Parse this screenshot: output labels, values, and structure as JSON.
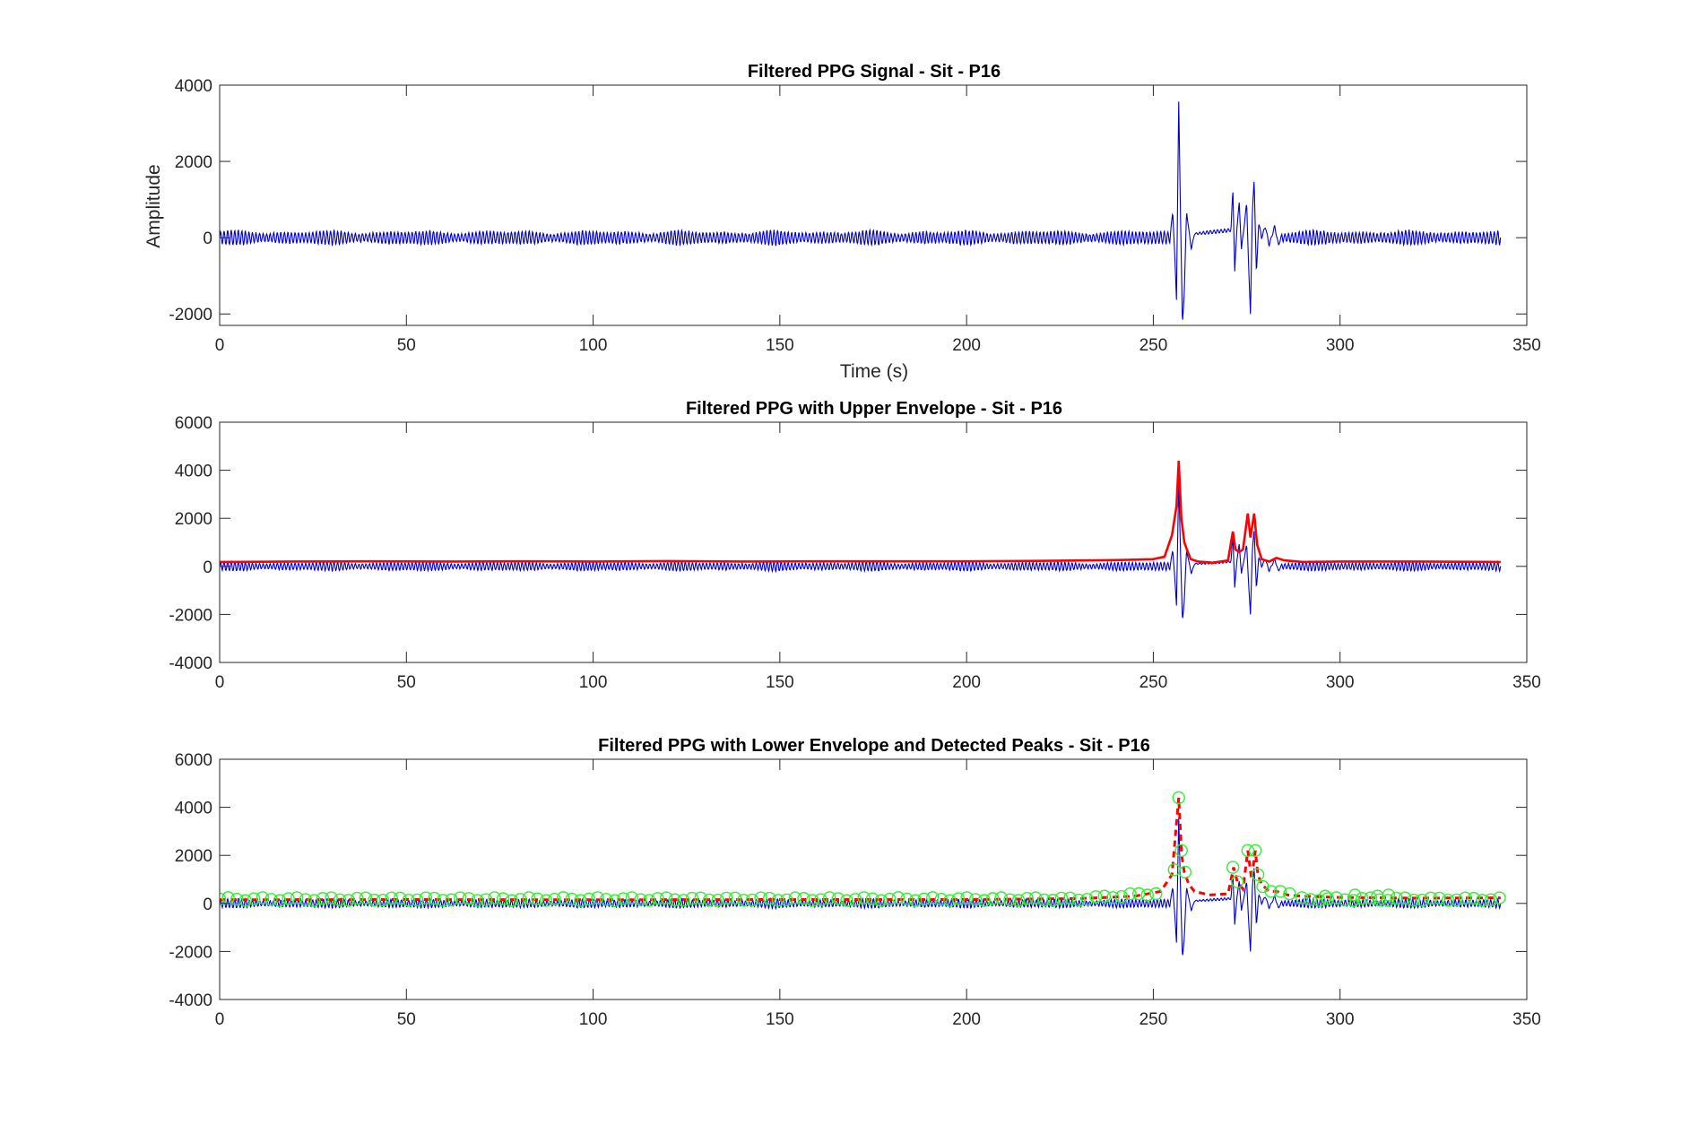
{
  "chart_data": [
    {
      "type": "line",
      "title": "Filtered PPG Signal - Sit - P16",
      "xlabel": "Time (s)",
      "ylabel": "Amplitude",
      "xlim": [
        0,
        350
      ],
      "ylim": [
        -2300,
        4000
      ],
      "xticks": [
        0,
        50,
        100,
        150,
        200,
        250,
        300,
        350
      ],
      "yticks": [
        -2000,
        0,
        2000,
        4000
      ],
      "grid": false,
      "colors": {
        "signal": "#0000cc"
      },
      "signal": {
        "duration": 343,
        "baseline_amplitude": 170,
        "beat_period": 0.95,
        "artifact_points": [
          [
            254.5,
            0
          ],
          [
            255.2,
            700
          ],
          [
            255.7,
            -400
          ],
          [
            256.2,
            -1600
          ],
          [
            256.8,
            3550
          ],
          [
            257.3,
            500
          ],
          [
            257.8,
            -2300
          ],
          [
            258.3,
            -1400
          ],
          [
            258.9,
            700
          ],
          [
            259.5,
            200
          ],
          [
            260.2,
            -300
          ],
          [
            261.0,
            100
          ],
          [
            270.8,
            200
          ],
          [
            271.3,
            1300
          ],
          [
            271.8,
            -900
          ],
          [
            272.4,
            300
          ],
          [
            273.0,
            900
          ],
          [
            273.6,
            -300
          ],
          [
            274.3,
            300
          ],
          [
            275.0,
            900
          ],
          [
            275.6,
            -1000
          ],
          [
            276.0,
            -2000
          ],
          [
            276.5,
            600
          ],
          [
            277.0,
            1550
          ],
          [
            277.6,
            -1000
          ],
          [
            278.2,
            400
          ],
          [
            279.0,
            0
          ],
          [
            280.0,
            300
          ],
          [
            281.0,
            -200
          ],
          [
            282.5,
            300
          ],
          [
            283.5,
            -200
          ],
          [
            284.5,
            100
          ]
        ]
      }
    },
    {
      "type": "line",
      "title": "Filtered PPG with Upper Envelope - Sit - P16",
      "xlabel": "",
      "ylabel": "",
      "xlim": [
        0,
        350
      ],
      "ylim": [
        -4000,
        6000
      ],
      "xticks": [
        0,
        50,
        100,
        150,
        200,
        250,
        300,
        350
      ],
      "yticks": [
        -4000,
        -2000,
        0,
        2000,
        4000,
        6000
      ],
      "grid": false,
      "colors": {
        "signal": "#0000cc",
        "upper_envelope": "#ff0000"
      },
      "upper_envelope": [
        [
          0,
          180
        ],
        [
          20,
          200
        ],
        [
          40,
          210
        ],
        [
          60,
          200
        ],
        [
          80,
          210
        ],
        [
          100,
          200
        ],
        [
          120,
          220
        ],
        [
          140,
          200
        ],
        [
          160,
          210
        ],
        [
          180,
          210
        ],
        [
          200,
          210
        ],
        [
          220,
          230
        ],
        [
          240,
          260
        ],
        [
          250,
          300
        ],
        [
          253,
          400
        ],
        [
          255,
          1300
        ],
        [
          256.2,
          2500
        ],
        [
          256.8,
          4400
        ],
        [
          257.5,
          2000
        ],
        [
          258.3,
          1000
        ],
        [
          259,
          700
        ],
        [
          260,
          300
        ],
        [
          262,
          200
        ],
        [
          266,
          150
        ],
        [
          270,
          250
        ],
        [
          271.3,
          1450
        ],
        [
          272,
          700
        ],
        [
          273,
          600
        ],
        [
          274,
          700
        ],
        [
          275.3,
          2200
        ],
        [
          276,
          1200
        ],
        [
          277,
          2200
        ],
        [
          277.8,
          900
        ],
        [
          279,
          300
        ],
        [
          281,
          200
        ],
        [
          283,
          350
        ],
        [
          285,
          250
        ],
        [
          290,
          180
        ],
        [
          300,
          200
        ],
        [
          320,
          200
        ],
        [
          343,
          180
        ]
      ]
    },
    {
      "type": "line",
      "title": "Filtered PPG with Lower Envelope and Detected Peaks - Sit - P16",
      "xlabel": "",
      "ylabel": "",
      "xlim": [
        0,
        350
      ],
      "ylim": [
        -4000,
        6000
      ],
      "xticks": [
        0,
        50,
        100,
        150,
        200,
        250,
        300,
        350
      ],
      "yticks": [
        -4000,
        -2000,
        0,
        2000,
        4000,
        6000
      ],
      "grid": false,
      "colors": {
        "signal": "#0000cc",
        "lower_envelope": "#ff0000",
        "peaks": "#33ee33"
      },
      "lower_envelope": [
        [
          0,
          150
        ],
        [
          50,
          160
        ],
        [
          100,
          150
        ],
        [
          150,
          160
        ],
        [
          200,
          160
        ],
        [
          230,
          200
        ],
        [
          245,
          300
        ],
        [
          252,
          500
        ],
        [
          255,
          1200
        ],
        [
          256.8,
          4400
        ],
        [
          257.6,
          2000
        ],
        [
          258.3,
          1300
        ],
        [
          259.5,
          800
        ],
        [
          261,
          500
        ],
        [
          265,
          350
        ],
        [
          270,
          400
        ],
        [
          271.5,
          1500
        ],
        [
          272.5,
          900
        ],
        [
          274,
          600
        ],
        [
          275.3,
          2200
        ],
        [
          276.3,
          1000
        ],
        [
          277.3,
          2200
        ],
        [
          278,
          1200
        ],
        [
          279,
          800
        ],
        [
          281,
          500
        ],
        [
          283,
          500
        ],
        [
          286,
          350
        ],
        [
          290,
          300
        ],
        [
          300,
          250
        ],
        [
          320,
          220
        ],
        [
          343,
          230
        ]
      ],
      "peaks": {
        "spacing": 2.3,
        "start": 0,
        "end": 343,
        "extra": [
          [
            256.8,
            4400
          ],
          [
            257.5,
            2200
          ],
          [
            258.5,
            1300
          ],
          [
            255.6,
            1400
          ],
          [
            271.3,
            1500
          ],
          [
            272.5,
            900
          ],
          [
            275.3,
            2200
          ],
          [
            277.3,
            2200
          ],
          [
            278.0,
            1200
          ],
          [
            279.3,
            700
          ],
          [
            281.5,
            500
          ],
          [
            284.0,
            500
          ],
          [
            286.5,
            400
          ],
          [
            296,
            300
          ],
          [
            304,
            350
          ],
          [
            310,
            300
          ],
          [
            313,
            350
          ]
        ]
      }
    }
  ]
}
